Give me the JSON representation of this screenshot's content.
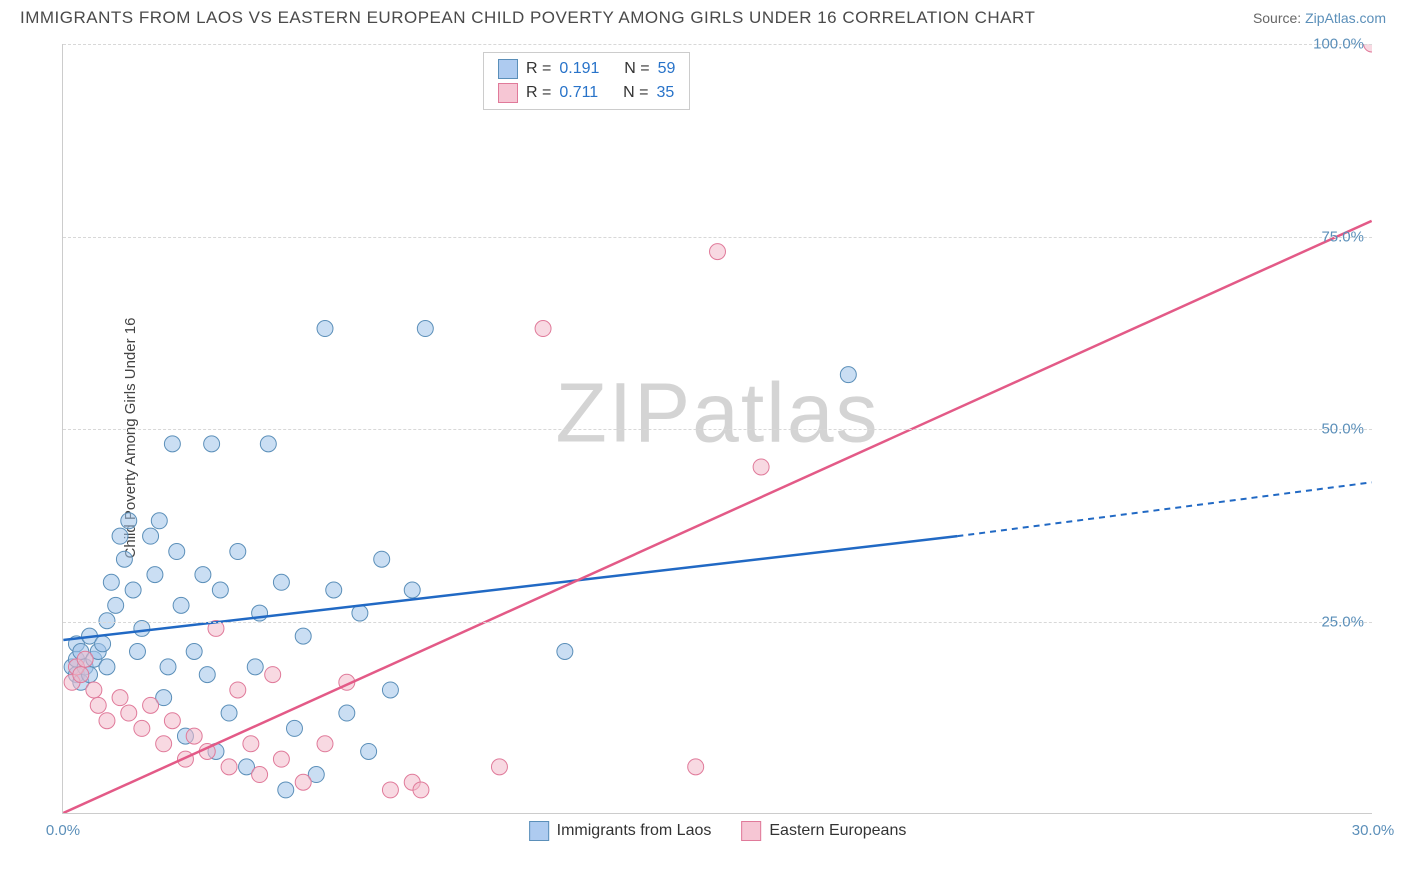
{
  "title": "IMMIGRANTS FROM LAOS VS EASTERN EUROPEAN CHILD POVERTY AMONG GIRLS UNDER 16 CORRELATION CHART",
  "source_prefix": "Source: ",
  "source_link": "ZipAtlas.com",
  "watermark_a": "ZIP",
  "watermark_b": "atlas",
  "chart": {
    "type": "scatter",
    "background_color": "#ffffff",
    "grid_color": "#d8d8d8",
    "axis_color": "#cccccc",
    "ylabel": "Child Poverty Among Girls Under 16",
    "xlim": [
      0,
      30
    ],
    "ylim": [
      0,
      100
    ],
    "xticks": [
      {
        "v": 0,
        "label": "0.0%"
      },
      {
        "v": 30,
        "label": "30.0%"
      }
    ],
    "yticks": [
      {
        "v": 25,
        "label": "25.0%"
      },
      {
        "v": 50,
        "label": "50.0%"
      },
      {
        "v": 75,
        "label": "75.0%"
      },
      {
        "v": 100,
        "label": "100.0%"
      }
    ],
    "tick_color": "#5b8fb9",
    "tick_fontsize": 15,
    "label_fontsize": 15,
    "marker_radius": 8,
    "marker_opacity": 0.55,
    "series": [
      {
        "name": "Immigrants from Laos",
        "swatch_fill": "#aecbf0",
        "swatch_stroke": "#5b8fb9",
        "marker_fill": "#9fc2ea",
        "marker_stroke": "#5b8fb9",
        "line_color": "#2169c4",
        "R": "0.191",
        "N": "59",
        "trend": {
          "x1": 0,
          "y1": 22.5,
          "x2_solid": 20.5,
          "y2_solid": 36,
          "x2_dash": 30,
          "y2_dash": 43
        },
        "points": [
          [
            0.2,
            19
          ],
          [
            0.3,
            18
          ],
          [
            0.3,
            20
          ],
          [
            0.3,
            22
          ],
          [
            0.4,
            17
          ],
          [
            0.4,
            21
          ],
          [
            0.5,
            19
          ],
          [
            0.6,
            23
          ],
          [
            0.6,
            18
          ],
          [
            0.7,
            20
          ],
          [
            0.8,
            21
          ],
          [
            0.9,
            22
          ],
          [
            1.0,
            25
          ],
          [
            1.0,
            19
          ],
          [
            1.1,
            30
          ],
          [
            1.2,
            27
          ],
          [
            1.3,
            36
          ],
          [
            1.4,
            33
          ],
          [
            1.5,
            38
          ],
          [
            1.6,
            29
          ],
          [
            1.7,
            21
          ],
          [
            1.8,
            24
          ],
          [
            2.0,
            36
          ],
          [
            2.1,
            31
          ],
          [
            2.2,
            38
          ],
          [
            2.3,
            15
          ],
          [
            2.4,
            19
          ],
          [
            2.5,
            48
          ],
          [
            2.6,
            34
          ],
          [
            2.7,
            27
          ],
          [
            2.8,
            10
          ],
          [
            3.0,
            21
          ],
          [
            3.2,
            31
          ],
          [
            3.3,
            18
          ],
          [
            3.4,
            48
          ],
          [
            3.5,
            8
          ],
          [
            3.6,
            29
          ],
          [
            3.8,
            13
          ],
          [
            4.0,
            34
          ],
          [
            4.2,
            6
          ],
          [
            4.4,
            19
          ],
          [
            4.5,
            26
          ],
          [
            4.7,
            48
          ],
          [
            5.0,
            30
          ],
          [
            5.1,
            3
          ],
          [
            5.3,
            11
          ],
          [
            5.5,
            23
          ],
          [
            5.8,
            5
          ],
          [
            6.0,
            63
          ],
          [
            6.2,
            29
          ],
          [
            6.5,
            13
          ],
          [
            6.8,
            26
          ],
          [
            7.0,
            8
          ],
          [
            7.3,
            33
          ],
          [
            7.5,
            16
          ],
          [
            8.0,
            29
          ],
          [
            8.3,
            63
          ],
          [
            11.5,
            21
          ],
          [
            18.0,
            57
          ]
        ]
      },
      {
        "name": "Eastern Europeans",
        "swatch_fill": "#f6c6d4",
        "swatch_stroke": "#e07a9a",
        "marker_fill": "#f3b9cb",
        "marker_stroke": "#e07a9a",
        "line_color": "#e35a87",
        "R": "0.711",
        "N": "35",
        "trend": {
          "x1": 0,
          "y1": 0,
          "x2_solid": 30,
          "y2_solid": 77,
          "x2_dash": 30,
          "y2_dash": 77
        },
        "points": [
          [
            0.2,
            17
          ],
          [
            0.3,
            19
          ],
          [
            0.4,
            18
          ],
          [
            0.5,
            20
          ],
          [
            0.7,
            16
          ],
          [
            0.8,
            14
          ],
          [
            1.0,
            12
          ],
          [
            1.3,
            15
          ],
          [
            1.5,
            13
          ],
          [
            1.8,
            11
          ],
          [
            2.0,
            14
          ],
          [
            2.3,
            9
          ],
          [
            2.5,
            12
          ],
          [
            2.8,
            7
          ],
          [
            3.0,
            10
          ],
          [
            3.3,
            8
          ],
          [
            3.5,
            24
          ],
          [
            3.8,
            6
          ],
          [
            4.0,
            16
          ],
          [
            4.3,
            9
          ],
          [
            4.5,
            5
          ],
          [
            4.8,
            18
          ],
          [
            5.0,
            7
          ],
          [
            5.5,
            4
          ],
          [
            6.0,
            9
          ],
          [
            6.5,
            17
          ],
          [
            7.5,
            3
          ],
          [
            8.0,
            4
          ],
          [
            8.2,
            3
          ],
          [
            10.0,
            6
          ],
          [
            11.0,
            63
          ],
          [
            14.5,
            6
          ],
          [
            15.0,
            73
          ],
          [
            16.0,
            45
          ],
          [
            30.0,
            100
          ]
        ]
      }
    ],
    "legend_top": {
      "R_label": "R =",
      "N_label": "N ="
    },
    "legend_bottom": [
      {
        "label": "Immigrants from Laos",
        "fill": "#aecbf0",
        "stroke": "#5b8fb9"
      },
      {
        "label": "Eastern Europeans",
        "fill": "#f6c6d4",
        "stroke": "#e07a9a"
      }
    ]
  }
}
